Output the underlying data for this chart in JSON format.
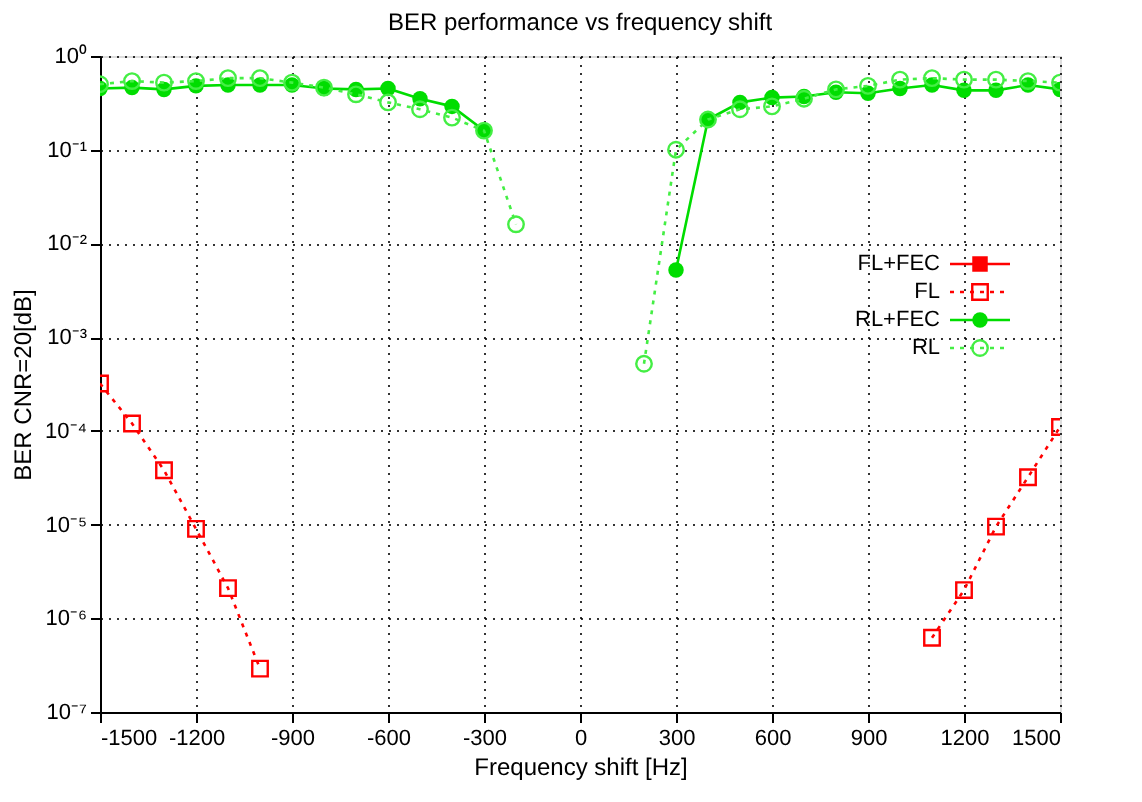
{
  "chart_data": {
    "type": "line",
    "title": "BER performance vs frequency shift",
    "xlabel": "Frequency shift [Hz]",
    "ylabel": "BER CNR=20[dB]",
    "log": "y",
    "grid": true,
    "legend": "right",
    "x": [
      -1500,
      -1400,
      -1300,
      -1200,
      -1100,
      -1000,
      -900,
      -800,
      -700,
      -600,
      -500,
      -400,
      -300,
      -200,
      -100,
      0,
      100,
      200,
      300,
      400,
      500,
      600,
      700,
      800,
      900,
      1000,
      1100,
      1200,
      1300,
      1400,
      1500
    ],
    "xlim": [
      -1500,
      1500
    ],
    "xticks": [
      -1500,
      -1200,
      -900,
      -600,
      -300,
      0,
      300,
      600,
      900,
      1200,
      1500
    ],
    "ylim": [
      1e-07,
      1
    ],
    "yticks": [
      {
        "value": 1e-07,
        "label": "10⁻⁷"
      },
      {
        "value": 1e-06,
        "label": "10⁻⁶"
      },
      {
        "value": 1e-05,
        "label": "10⁻⁵"
      },
      {
        "value": 0.0001,
        "label": "10⁻⁴"
      },
      {
        "value": 0.001,
        "label": "10⁻³"
      },
      {
        "value": 0.01,
        "label": "10⁻²"
      },
      {
        "value": 0.1,
        "label": "10⁻¹"
      },
      {
        "value": 1,
        "label": "10⁰"
      }
    ],
    "series": [
      {
        "name": "FL+FEC",
        "color": "#ff0000",
        "marker": "square",
        "line_style": "solid",
        "values": [
          null,
          null,
          null,
          null,
          null,
          null,
          null,
          null,
          null,
          null,
          null,
          null,
          null,
          null,
          null,
          null,
          null,
          null,
          null,
          null,
          null,
          null,
          null,
          null,
          null,
          null,
          null,
          null,
          null,
          null,
          null
        ]
      },
      {
        "name": "FL",
        "color": "#ff0000",
        "marker": "square",
        "line_style": "dotted",
        "values": [
          0.00032,
          0.00012,
          3.8e-05,
          9e-06,
          2.1e-06,
          2.9e-07,
          null,
          null,
          null,
          null,
          null,
          null,
          null,
          null,
          null,
          null,
          null,
          null,
          null,
          null,
          null,
          null,
          null,
          null,
          null,
          null,
          6.2e-07,
          2e-06,
          9.5e-06,
          3.2e-05,
          0.00011
        ]
      },
      {
        "name": "RL+FEC",
        "color": "#00dd00",
        "marker": "circle",
        "line_style": "solid",
        "values": [
          0.45,
          0.46,
          0.44,
          0.48,
          0.49,
          0.49,
          0.49,
          0.45,
          0.44,
          0.45,
          0.35,
          0.29,
          0.16,
          null,
          null,
          null,
          null,
          null,
          0.0052,
          0.21,
          0.32,
          0.36,
          0.37,
          0.41,
          0.4,
          0.45,
          0.49,
          0.43,
          0.43,
          0.49,
          0.44
        ]
      },
      {
        "name": "RL",
        "color": "#44ee44",
        "marker": "circle",
        "line_style": "dotted",
        "values": [
          0.5,
          0.54,
          0.52,
          0.54,
          0.58,
          0.58,
          0.52,
          0.46,
          0.39,
          0.32,
          0.27,
          0.22,
          0.16,
          0.016,
          null,
          null,
          null,
          0.00052,
          0.1,
          0.21,
          0.27,
          0.29,
          0.35,
          0.44,
          0.48,
          0.56,
          0.58,
          0.56,
          0.56,
          0.54,
          0.52
        ]
      }
    ]
  }
}
